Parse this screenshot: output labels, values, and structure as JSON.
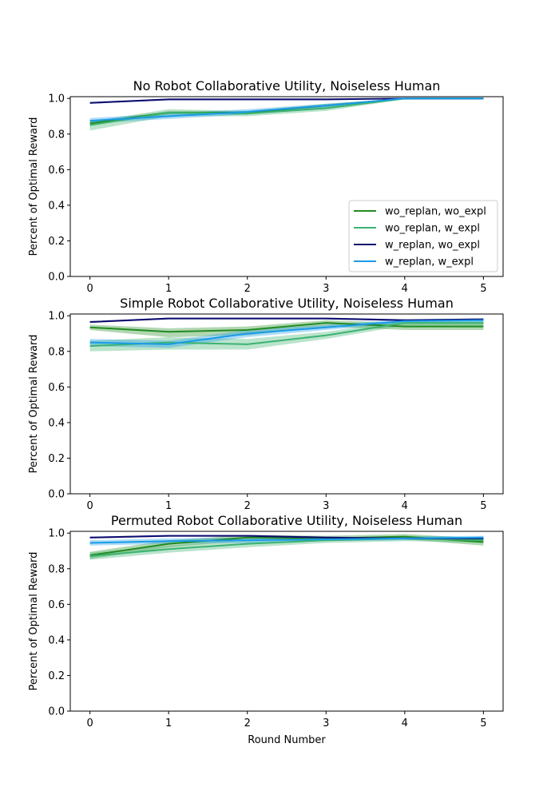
{
  "chart_data": [
    {
      "type": "line",
      "title": "No Robot Collaborative Utility, Noiseless Human",
      "xlabel": "",
      "ylabel": "Percent of Optimal Reward",
      "x": [
        0,
        1,
        2,
        3,
        4,
        5
      ],
      "ylim": [
        0,
        1.01
      ],
      "xlim": [
        -0.25,
        5.25
      ],
      "yticks": [
        0.0,
        0.2,
        0.4,
        0.6,
        0.8,
        1.0
      ],
      "ytick_labels": [
        "0.0",
        "0.2",
        "0.4",
        "0.6",
        "0.8",
        "1.0"
      ],
      "xtick_labels": [
        "0",
        "1",
        "2",
        "3",
        "4",
        "5"
      ],
      "legend": "lower-right",
      "series": [
        {
          "name": "wo_replan, wo_expl",
          "color": "#228b22",
          "band_color": "#228b22",
          "values": [
            0.86,
            0.92,
            0.92,
            0.96,
            1.0,
            1.0
          ],
          "lower": [
            0.85,
            0.91,
            0.91,
            0.95,
            0.995,
            0.995
          ],
          "upper": [
            0.87,
            0.93,
            0.93,
            0.97,
            1.0,
            1.0
          ]
        },
        {
          "name": "wo_replan, w_expl",
          "color": "#3cb371",
          "band_color": "#3cb371",
          "values": [
            0.85,
            0.92,
            0.915,
            0.945,
            1.0,
            1.0
          ],
          "lower": [
            0.82,
            0.9,
            0.9,
            0.93,
            0.995,
            0.995
          ],
          "upper": [
            0.87,
            0.94,
            0.93,
            0.96,
            1.0,
            1.0
          ]
        },
        {
          "name": "w_replan, wo_expl",
          "color": "#0b0b6e",
          "band_color": "#0b0b6e",
          "values": [
            0.975,
            0.995,
            0.995,
            0.995,
            1.0,
            1.0
          ],
          "lower": [
            0.97,
            0.99,
            0.99,
            0.99,
            0.998,
            0.998
          ],
          "upper": [
            0.98,
            1.0,
            1.0,
            1.0,
            1.0,
            1.0
          ]
        },
        {
          "name": "w_replan, w_expl",
          "color": "#1a9be8",
          "band_color": "#1a9be8",
          "values": [
            0.875,
            0.9,
            0.925,
            0.96,
            1.0,
            1.0
          ],
          "lower": [
            0.86,
            0.885,
            0.91,
            0.95,
            0.995,
            0.995
          ],
          "upper": [
            0.89,
            0.915,
            0.94,
            0.97,
            1.0,
            1.0
          ]
        }
      ]
    },
    {
      "type": "line",
      "title": "Simple Robot Collaborative Utility, Noiseless Human",
      "xlabel": "",
      "ylabel": "Percent of Optimal Reward",
      "x": [
        0,
        1,
        2,
        3,
        4,
        5
      ],
      "ylim": [
        0,
        1.01
      ],
      "xlim": [
        -0.25,
        5.25
      ],
      "yticks": [
        0.0,
        0.2,
        0.4,
        0.6,
        0.8,
        1.0
      ],
      "ytick_labels": [
        "0.0",
        "0.2",
        "0.4",
        "0.6",
        "0.8",
        "1.0"
      ],
      "xtick_labels": [
        "0",
        "1",
        "2",
        "3",
        "4",
        "5"
      ],
      "series": [
        {
          "name": "wo_replan, wo_expl",
          "color": "#228b22",
          "band_color": "#228b22",
          "values": [
            0.935,
            0.91,
            0.92,
            0.96,
            0.94,
            0.94
          ],
          "lower": [
            0.92,
            0.88,
            0.89,
            0.94,
            0.92,
            0.92
          ],
          "upper": [
            0.95,
            0.93,
            0.94,
            0.975,
            0.96,
            0.96
          ]
        },
        {
          "name": "wo_replan, w_expl",
          "color": "#3cb371",
          "band_color": "#3cb371",
          "values": [
            0.83,
            0.85,
            0.84,
            0.89,
            0.96,
            0.96
          ],
          "lower": [
            0.8,
            0.81,
            0.81,
            0.87,
            0.945,
            0.945
          ],
          "upper": [
            0.86,
            0.88,
            0.87,
            0.91,
            0.975,
            0.975
          ]
        },
        {
          "name": "w_replan, wo_expl",
          "color": "#0b0b6e",
          "band_color": "#0b0b6e",
          "values": [
            0.965,
            0.985,
            0.985,
            0.985,
            0.975,
            0.98
          ],
          "lower": [
            0.96,
            0.98,
            0.98,
            0.98,
            0.97,
            0.975
          ],
          "upper": [
            0.97,
            0.99,
            0.99,
            0.99,
            0.98,
            0.985
          ]
        },
        {
          "name": "w_replan, w_expl",
          "color": "#1a9be8",
          "band_color": "#1a9be8",
          "values": [
            0.85,
            0.84,
            0.9,
            0.935,
            0.97,
            0.975
          ],
          "lower": [
            0.83,
            0.82,
            0.88,
            0.92,
            0.96,
            0.965
          ],
          "upper": [
            0.87,
            0.86,
            0.92,
            0.95,
            0.98,
            0.985
          ]
        }
      ]
    },
    {
      "type": "line",
      "title": "Permuted Robot Collaborative Utility, Noiseless Human",
      "xlabel": "Round Number",
      "ylabel": "Percent of Optimal Reward",
      "x": [
        0,
        1,
        2,
        3,
        4,
        5
      ],
      "ylim": [
        0,
        1.01
      ],
      "xlim": [
        -0.25,
        5.25
      ],
      "yticks": [
        0.0,
        0.2,
        0.4,
        0.6,
        0.8,
        1.0
      ],
      "ytick_labels": [
        "0.0",
        "0.2",
        "0.4",
        "0.6",
        "0.8",
        "1.0"
      ],
      "xtick_labels": [
        "0",
        "1",
        "2",
        "3",
        "4",
        "5"
      ],
      "series": [
        {
          "name": "wo_replan, wo_expl",
          "color": "#228b22",
          "band_color": "#228b22",
          "values": [
            0.875,
            0.94,
            0.975,
            0.97,
            0.98,
            0.95
          ],
          "lower": [
            0.855,
            0.92,
            0.96,
            0.955,
            0.965,
            0.93
          ],
          "upper": [
            0.895,
            0.96,
            0.99,
            0.985,
            0.995,
            0.97
          ]
        },
        {
          "name": "wo_replan, w_expl",
          "color": "#3cb371",
          "band_color": "#3cb371",
          "values": [
            0.87,
            0.91,
            0.94,
            0.96,
            0.97,
            0.96
          ],
          "lower": [
            0.85,
            0.89,
            0.92,
            0.945,
            0.955,
            0.945
          ],
          "upper": [
            0.89,
            0.93,
            0.96,
            0.975,
            0.985,
            0.975
          ]
        },
        {
          "name": "w_replan, wo_expl",
          "color": "#0b0b6e",
          "band_color": "#0b0b6e",
          "values": [
            0.975,
            0.985,
            0.985,
            0.975,
            0.97,
            0.97
          ],
          "lower": [
            0.97,
            0.98,
            0.98,
            0.97,
            0.965,
            0.965
          ],
          "upper": [
            0.98,
            0.99,
            0.99,
            0.98,
            0.975,
            0.975
          ]
        },
        {
          "name": "w_replan, w_expl",
          "color": "#1a9be8",
          "band_color": "#1a9be8",
          "values": [
            0.945,
            0.955,
            0.96,
            0.965,
            0.97,
            0.975
          ],
          "lower": [
            0.93,
            0.94,
            0.945,
            0.955,
            0.96,
            0.965
          ],
          "upper": [
            0.96,
            0.97,
            0.975,
            0.975,
            0.98,
            0.985
          ]
        }
      ]
    }
  ]
}
